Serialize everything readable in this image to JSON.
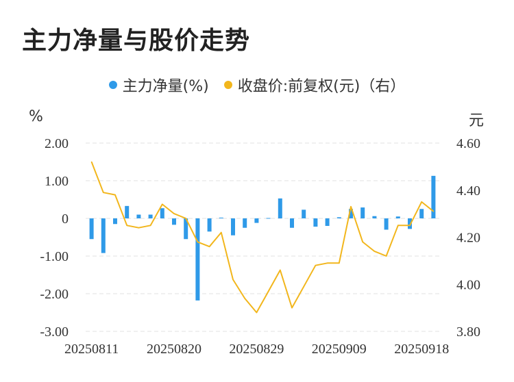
{
  "title": "主力净量与股价走势",
  "legend": {
    "bar_label": "主力净量(%)",
    "line_label": "收盘价:前复权(元)（右）"
  },
  "units": {
    "left": "%",
    "right": "元"
  },
  "colors": {
    "bar": "#2f9ae8",
    "line": "#f2b61c",
    "grid": "#e0e0e0",
    "text": "#333333"
  },
  "chart_data": {
    "type": "bar+line",
    "x_tick_labels": [
      "20250811",
      "20250820",
      "20250829",
      "20250909",
      "20250918"
    ],
    "x_tick_indices": [
      0,
      7,
      14,
      21,
      28
    ],
    "left_axis": {
      "ylim": [
        -3,
        2
      ],
      "ticks": [
        2,
        1,
        0,
        -1,
        -2,
        -3
      ],
      "tick_labels": [
        "2.00",
        "1.00",
        "0",
        "-1.00",
        "-2.00",
        "-3.00"
      ]
    },
    "right_axis": {
      "ylim": [
        3.8,
        4.6
      ],
      "ticks": [
        4.6,
        4.4,
        4.2,
        4.0,
        3.8
      ],
      "tick_labels": [
        "4.60",
        "4.40",
        "4.20",
        "4.00",
        "3.80"
      ]
    },
    "series": [
      {
        "name": "主力净量(%)",
        "type": "bar",
        "axis": "left",
        "values": [
          -0.55,
          -0.92,
          -0.15,
          0.33,
          0.1,
          0.1,
          0.27,
          -0.17,
          -0.55,
          -2.18,
          -0.35,
          0.02,
          -0.45,
          -0.25,
          -0.12,
          0.01,
          0.53,
          -0.25,
          0.23,
          -0.22,
          -0.2,
          0.03,
          0.25,
          0.29,
          0.06,
          -0.3,
          0.05,
          -0.28,
          0.25,
          1.13
        ]
      },
      {
        "name": "收盘价:前复权(元)（右）",
        "type": "line",
        "axis": "right",
        "values": [
          4.52,
          4.39,
          4.38,
          4.25,
          4.24,
          4.25,
          4.34,
          4.3,
          4.28,
          4.18,
          4.16,
          4.22,
          4.02,
          3.94,
          3.88,
          3.97,
          4.06,
          3.9,
          3.99,
          4.08,
          4.09,
          4.09,
          4.33,
          4.18,
          4.14,
          4.12,
          4.25,
          4.25,
          4.35,
          4.31
        ]
      }
    ]
  }
}
